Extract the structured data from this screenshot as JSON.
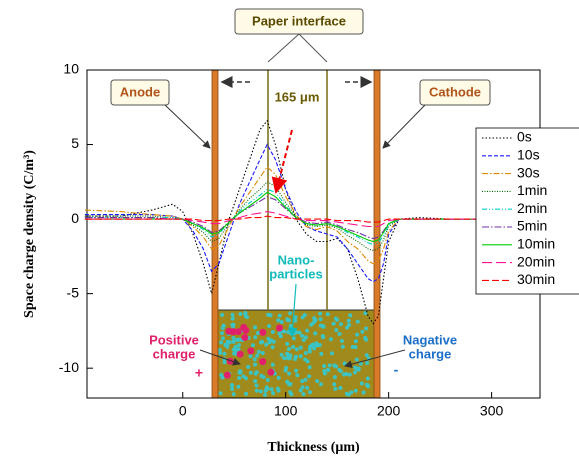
{
  "chart_data": {
    "type": "line",
    "xlabel": "Thickness (μm)",
    "ylabel": "Space charge density (C/m³)",
    "xlim": [
      -93,
      347
    ],
    "ylim": [
      -12,
      10
    ],
    "xticks": [
      0,
      100,
      200,
      300
    ],
    "yticks": [
      -10,
      -5,
      0,
      5,
      10
    ],
    "x": [
      -95,
      -60,
      -30,
      -10,
      0,
      10,
      20,
      28,
      35,
      45,
      55,
      65,
      75,
      82,
      90,
      100,
      110,
      120,
      130,
      140,
      150,
      160,
      170,
      180,
      185,
      190,
      195,
      200,
      210,
      230,
      260,
      300,
      345
    ],
    "series": [
      {
        "name": "0s",
        "color": "#000000",
        "dash": "1.5,2",
        "values": [
          0.2,
          0.2,
          0.6,
          1.0,
          0.5,
          -1,
          -3,
          -5,
          -3,
          0,
          2,
          4,
          6,
          6.6,
          5,
          2,
          0,
          -1,
          -1.5,
          -1.5,
          -1.3,
          -2,
          -4,
          -6.5,
          -7,
          -6.5,
          -4,
          -1.5,
          0,
          0.1,
          0,
          0,
          0
        ]
      },
      {
        "name": "10s",
        "color": "#1a1aff",
        "dash": "4,2",
        "values": [
          0.3,
          0.3,
          0.3,
          0.2,
          0,
          -0.8,
          -2,
          -3.5,
          -3,
          -1,
          1,
          2.5,
          4,
          5,
          4,
          2,
          0.5,
          -0.5,
          -0.8,
          -1,
          -1.2,
          -2,
          -3,
          -4,
          -4.2,
          -4,
          -3,
          -1,
          0,
          0,
          0,
          0,
          0
        ]
      },
      {
        "name": "30s",
        "color": "#e08a00",
        "dash": "6,2,1.5,2",
        "values": [
          0.6,
          0.5,
          0.3,
          0.2,
          0,
          -0.5,
          -1.2,
          -2,
          -1.8,
          -0.5,
          0.8,
          1.8,
          2.8,
          3.5,
          3,
          1.5,
          0.3,
          -0.5,
          -0.7,
          -0.5,
          -0.8,
          -1.5,
          -2,
          -2.8,
          -3,
          -2.8,
          -2,
          -0.8,
          0,
          0,
          0,
          0,
          0
        ]
      },
      {
        "name": "1min",
        "color": "#006400",
        "dash": "1,1.5",
        "values": [
          0.2,
          0.2,
          0.2,
          0.1,
          0,
          -0.4,
          -0.9,
          -1.5,
          -1.3,
          -0.3,
          0.6,
          1.4,
          2,
          2.5,
          2.2,
          1.1,
          0.2,
          -0.4,
          -0.5,
          -0.4,
          -0.6,
          -1.1,
          -1.5,
          -2,
          -2.1,
          -2,
          -1.4,
          -0.5,
          0,
          0,
          0,
          0,
          0
        ]
      },
      {
        "name": "2min",
        "color": "#00cccc",
        "dash": "5,2,1,2,1,2",
        "values": [
          0.1,
          0.1,
          0.1,
          0.1,
          0,
          -0.3,
          -0.7,
          -1.2,
          -1,
          -0.2,
          0.5,
          1.1,
          1.6,
          2,
          1.8,
          0.9,
          0.1,
          -0.3,
          -0.4,
          -0.3,
          -0.5,
          -0.9,
          -1.2,
          -1.6,
          -1.7,
          -1.6,
          -1.1,
          -0.4,
          0,
          0,
          0,
          0,
          0
        ]
      },
      {
        "name": "5min",
        "color": "#7030a0",
        "dash": "7,2,1.5,2",
        "values": [
          0.1,
          0.1,
          0.1,
          0,
          0,
          -0.2,
          -0.5,
          -0.9,
          -0.8,
          -0.2,
          0.4,
          0.8,
          1.2,
          1.5,
          1.3,
          0.7,
          0.1,
          -0.2,
          -0.3,
          -0.2,
          -0.4,
          -0.7,
          -0.9,
          -1.2,
          -1.3,
          -1.2,
          -0.8,
          -0.3,
          0,
          0,
          0,
          0,
          0
        ]
      },
      {
        "name": "10min",
        "color": "#00cc00",
        "dash": "",
        "values": [
          0,
          0,
          0,
          0,
          0,
          -0.3,
          -0.6,
          -1,
          -0.9,
          -0.2,
          0.4,
          0.9,
          1.4,
          1.8,
          1.5,
          0.8,
          0.1,
          -0.3,
          -0.4,
          -0.3,
          -0.5,
          -0.8,
          -1.1,
          -1.4,
          -1.5,
          -1.4,
          -0.9,
          -0.3,
          0,
          0,
          0,
          0,
          0
        ]
      },
      {
        "name": "20min",
        "color": "#ff1493",
        "dash": "10,4",
        "values": [
          0,
          0,
          0,
          0,
          0,
          -0.1,
          -0.2,
          -0.3,
          -0.3,
          -0.1,
          0.1,
          0.3,
          0.4,
          0.5,
          0.4,
          0.2,
          0,
          -0.1,
          -0.1,
          -0.1,
          -0.2,
          -0.3,
          -0.4,
          -0.5,
          -0.5,
          -0.5,
          -0.3,
          -0.1,
          0,
          0,
          0,
          0,
          0
        ]
      },
      {
        "name": "30min",
        "color": "#ff0000",
        "dash": "7,3",
        "values": [
          0,
          0,
          0,
          0,
          0,
          0,
          -0.1,
          -0.1,
          -0.1,
          0,
          0,
          0.1,
          0.1,
          0.2,
          0.1,
          0.1,
          0,
          0,
          0,
          0,
          -0.1,
          -0.1,
          -0.1,
          -0.2,
          -0.2,
          -0.2,
          -0.1,
          0,
          0,
          0,
          0,
          0,
          0
        ]
      }
    ],
    "annotations": {
      "paper_interface": "Paper interface",
      "anode": "Anode",
      "cathode": "Cathode",
      "width": "165 μm",
      "nano": [
        "Nano-",
        "particles"
      ],
      "positive": [
        "Positive",
        "charge"
      ],
      "negative": [
        "Nagative",
        "charge"
      ],
      "plus": "+",
      "minus": "-"
    }
  }
}
